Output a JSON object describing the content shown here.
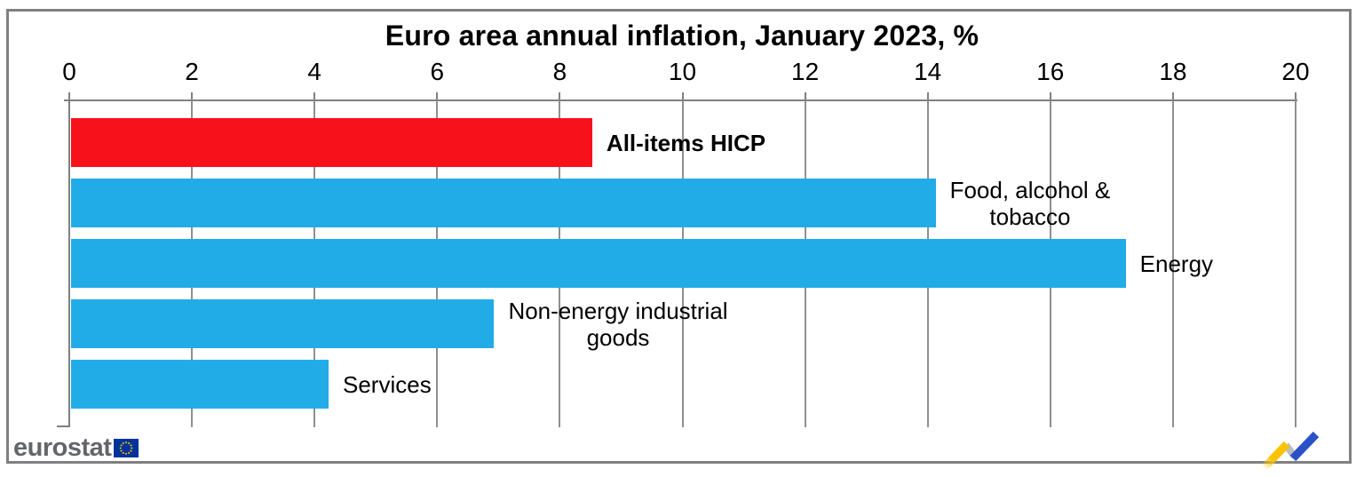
{
  "chart_data": {
    "type": "bar",
    "orientation": "horizontal",
    "title": "Euro area annual inflation, January 2023, %",
    "categories": [
      "All-items HICP",
      "Food, alcohol & tobacco",
      "Energy",
      "Non-energy industrial goods",
      "Services"
    ],
    "values": [
      8.5,
      14.1,
      17.2,
      6.9,
      4.2
    ],
    "unit": "%",
    "xlim": [
      0,
      20
    ],
    "tick_step": 2,
    "tick_labels": [
      "0",
      "2",
      "4",
      "6",
      "8",
      "10",
      "12",
      "14",
      "16",
      "18",
      "20"
    ],
    "axis_position": "top",
    "grid": true,
    "legend": "none",
    "bars": [
      {
        "slug": "all-items-hicp",
        "label_lines": [
          "All-items HICP"
        ],
        "value": 8.5,
        "color": "#f6111b",
        "bold_label": true
      },
      {
        "slug": "food-alcohol-tobacco",
        "label_lines": [
          "Food, alcohol &",
          "tobacco"
        ],
        "value": 14.1,
        "color": "#21ace8",
        "bold_label": false
      },
      {
        "slug": "energy",
        "label_lines": [
          "Energy"
        ],
        "value": 17.2,
        "color": "#21ace8",
        "bold_label": false
      },
      {
        "slug": "non-energy-industrial-goods",
        "label_lines": [
          "Non-energy industrial",
          "goods"
        ],
        "value": 6.9,
        "color": "#21ace8",
        "bold_label": false
      },
      {
        "slug": "services",
        "label_lines": [
          "Services"
        ],
        "value": 4.2,
        "color": "#21ace8",
        "bold_label": false
      }
    ]
  },
  "footer": {
    "brand_text": "eurostat"
  },
  "colors": {
    "highlight_red": "#f6111b",
    "bar_blue": "#21ace8",
    "grid_gray": "#8f8f8f",
    "axis_gray": "#808080",
    "frame_border": "#808080",
    "brand_gray": "#636569",
    "eu_flag_blue": "#003399",
    "eu_star_yellow": "#ffcc00",
    "logo_yellow": "#fcc200",
    "logo_blue": "#2a51c7",
    "logo_gray": "#bdbdbd"
  }
}
